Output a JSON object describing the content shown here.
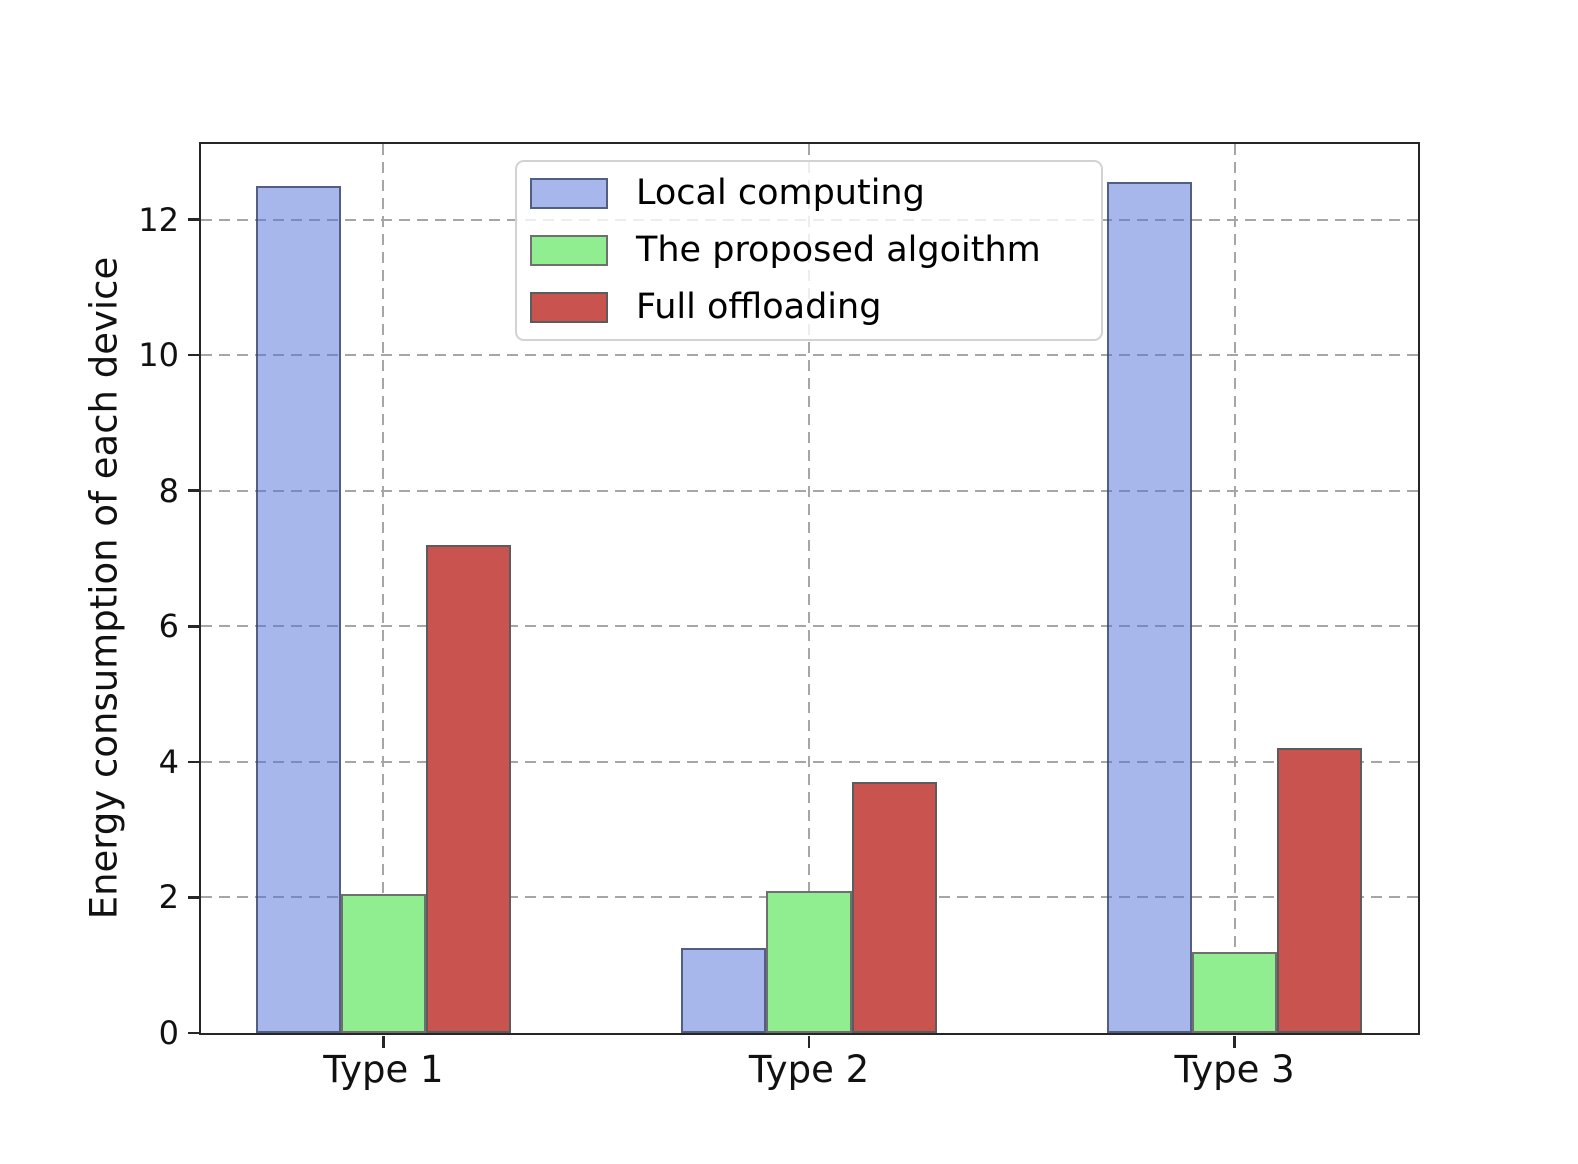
{
  "chart_data": {
    "type": "bar",
    "title": "",
    "categories": [
      "Type 1",
      "Type 2",
      "Type 3"
    ],
    "series": [
      {
        "name": "Local computing",
        "values": [
          12.5,
          1.25,
          12.55
        ],
        "fill": "rgba(80,110,215,0.5)",
        "edge": "rgba(55,65,95,0.75)",
        "hatch": "slash",
        "hatch_color": "rgba(35,45,75,0.6)"
      },
      {
        "name": "The proposed algoithm",
        "values": [
          2.05,
          2.1,
          1.2
        ],
        "fill": "#90ee90",
        "edge": "#6f6f6f",
        "hatch": "none",
        "hatch_color": "transparent"
      },
      {
        "name": "Full offloading",
        "values": [
          7.2,
          3.7,
          4.2
        ],
        "fill": "#c9534f",
        "edge": "#5c5c5c",
        "hatch": "x",
        "hatch_color": "#6a6a6a"
      }
    ],
    "xlabel": "",
    "ylabel": "Energy consumption of each device",
    "yticks": [
      0,
      2,
      4,
      6,
      8,
      10,
      12
    ],
    "ylim": [
      0,
      13.1
    ],
    "grid": true,
    "grid_style": "dashed",
    "legend_position": "upper center",
    "axis_color": "#262626",
    "grid_color": "#a6a6a6"
  }
}
